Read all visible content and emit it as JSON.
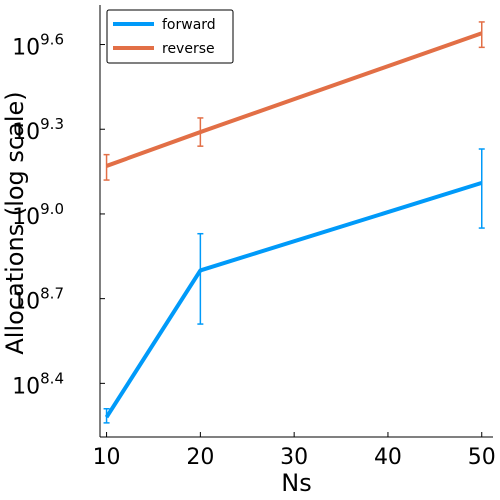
{
  "chart_data": {
    "type": "line",
    "title": "",
    "xlabel": "Ns",
    "ylabel": "Allocations (log scale)",
    "yscale": "log10",
    "x": [
      10,
      20,
      50
    ],
    "xlim": [
      9.3,
      51.2
    ],
    "ylim_log10": [
      8.21,
      9.74
    ],
    "xticks": [
      "10",
      "20",
      "30",
      "40",
      "50"
    ],
    "yticks": [
      {
        "base": "10",
        "exp": "8.4"
      },
      {
        "base": "10",
        "exp": "8.7"
      },
      {
        "base": "10",
        "exp": "9.0"
      },
      {
        "base": "10",
        "exp": "9.3"
      },
      {
        "base": "10",
        "exp": "9.6"
      }
    ],
    "grid": false,
    "legend_position": "top-left",
    "series": [
      {
        "name": "forward",
        "color": "#009af9",
        "log10_values": [
          8.28,
          8.8,
          9.11
        ],
        "err_low": [
          8.26,
          8.61,
          8.95
        ],
        "err_high": [
          8.31,
          8.93,
          9.23
        ]
      },
      {
        "name": "reverse",
        "color": "#e26f46",
        "log10_values": [
          9.17,
          9.29,
          9.64
        ],
        "err_low": [
          9.12,
          9.24,
          9.59
        ],
        "err_high": [
          9.21,
          9.34,
          9.68
        ]
      }
    ]
  }
}
